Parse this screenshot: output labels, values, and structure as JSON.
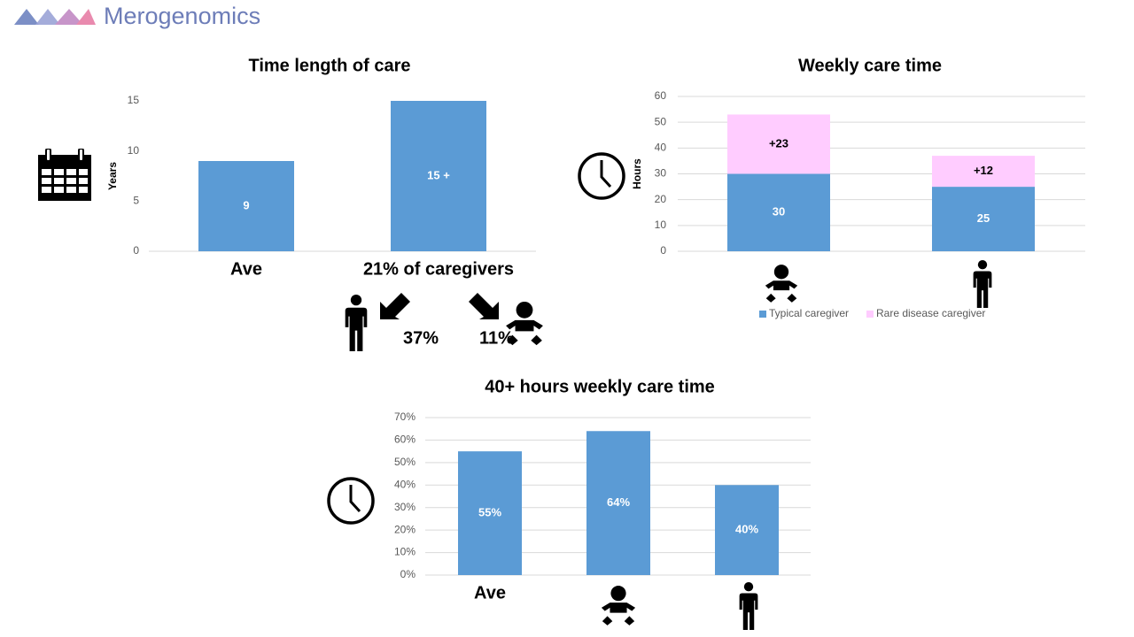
{
  "logo": {
    "text": "Merogenomics"
  },
  "chart_data": [
    {
      "type": "bar",
      "title": "Time length of care",
      "y_label": "Years",
      "categories": [
        "Ave",
        "21% of caregivers"
      ],
      "values": [
        9,
        15
      ],
      "value_labels": [
        "9",
        "15 +"
      ],
      "color": "#5b9bd5",
      "ylim": [
        0,
        15
      ],
      "yticks": [
        0,
        5,
        10,
        15
      ],
      "grid": false,
      "annotations": [
        "37%",
        "11%"
      ]
    },
    {
      "type": "bar",
      "stacked": true,
      "title": "Weekly care time",
      "y_label": "Hours",
      "categories": [
        null,
        null
      ],
      "series": [
        {
          "name": "Typical caregiver",
          "color": "#5b9bd5",
          "values": [
            30,
            25
          ]
        },
        {
          "name": "Rare disease caregiver",
          "color": "#ffccff",
          "values": [
            23,
            12
          ],
          "value_labels": [
            "+23",
            "+12"
          ]
        }
      ],
      "ylim": [
        0,
        60
      ],
      "yticks": [
        0,
        10,
        20,
        30,
        40,
        50,
        60
      ],
      "grid": true,
      "legend": "bottom"
    },
    {
      "type": "bar",
      "title": "40+ hours weekly care time",
      "categories": [
        "Ave",
        null,
        null
      ],
      "values": [
        55,
        64,
        40
      ],
      "value_labels": [
        "55%",
        "64%",
        "40%"
      ],
      "color": "#5b9bd5",
      "ylim": [
        0,
        70
      ],
      "yticks": [
        {
          "value": 0,
          "label": "0%"
        },
        {
          "value": 10,
          "label": "10%"
        },
        {
          "value": 20,
          "label": "20%"
        },
        {
          "value": 30,
          "label": "30%"
        },
        {
          "value": 40,
          "label": "40%"
        },
        {
          "value": 50,
          "label": "50%"
        },
        {
          "value": 60,
          "label": "60%"
        },
        {
          "value": 70,
          "label": "70%"
        }
      ],
      "grid": true
    }
  ]
}
